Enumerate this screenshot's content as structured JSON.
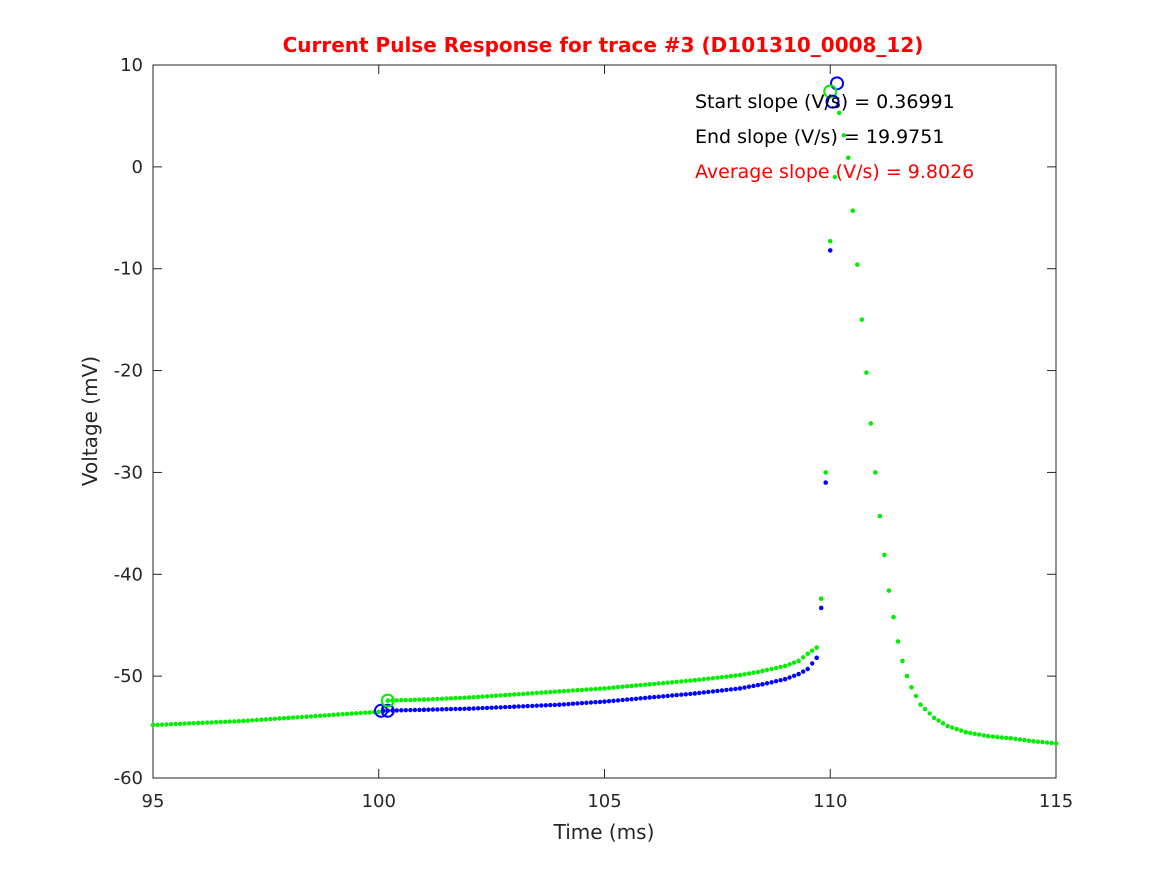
{
  "chart_data": {
    "type": "scatter",
    "title": "Current Pulse Response for trace #3 (D101310_0008_12)",
    "title_color": "#ff0000",
    "xlabel": "Time (ms)",
    "ylabel": "Voltage (mV)",
    "xlim": [
      95,
      115
    ],
    "ylim": [
      -60,
      10
    ],
    "xticks": [
      95,
      100,
      105,
      110,
      115
    ],
    "yticks": [
      -60,
      -50,
      -40,
      -30,
      -20,
      -10,
      0,
      10
    ],
    "xtick_labels": [
      "95",
      "100",
      "105",
      "110",
      "115"
    ],
    "ytick_labels": [
      "-60",
      "-50",
      "-40",
      "-30",
      "-20",
      "-10",
      "0",
      "10"
    ],
    "grid": false,
    "annotations": [
      {
        "text": "Start slope (V/s) = 0.36991",
        "color": "#000000"
      },
      {
        "text": "End slope (V/s) = 19.9751",
        "color": "#000000"
      },
      {
        "text": "Average slope (V/s) = 9.8026",
        "color": "#ff0000"
      }
    ],
    "series": [
      {
        "color": "#0000ff",
        "marker": "dot",
        "x": [
          100.1,
          101,
          102,
          103,
          104,
          105,
          106,
          107,
          108,
          108.5,
          109,
          109.3,
          109.5,
          109.7,
          109.8,
          109.9,
          110.0
        ],
        "y": [
          -53.4,
          -53.3,
          -53.2,
          -53.0,
          -52.8,
          -52.5,
          -52.1,
          -51.7,
          -51.2,
          -50.8,
          -50.3,
          -49.8,
          -49.3,
          -48.2,
          -43.3,
          -31.0,
          -8.2
        ]
      },
      {
        "color": "#00ee00",
        "marker": "dot",
        "x": [
          95,
          96,
          97,
          98,
          99,
          100,
          100.2,
          101,
          102,
          103,
          104,
          105,
          106,
          107,
          108,
          108.5,
          109,
          109.3,
          109.5,
          109.7,
          109.8,
          109.9,
          110.0,
          110.2,
          110.4,
          110.5,
          110.6,
          110.7,
          110.8,
          110.9,
          111.0,
          111.1,
          111.2,
          111.3,
          111.4,
          111.5,
          111.6,
          111.7,
          111.8,
          112.0,
          112.3,
          112.6,
          113.0,
          113.5,
          114.0,
          114.5,
          115.0
        ],
        "y": [
          -54.8,
          -54.6,
          -54.4,
          -54.1,
          -53.8,
          -53.5,
          -52.4,
          -52.3,
          -52.1,
          -51.8,
          -51.5,
          -51.2,
          -50.8,
          -50.4,
          -49.9,
          -49.5,
          -49.0,
          -48.5,
          -47.8,
          -47.2,
          -42.4,
          -30.0,
          -7.3,
          5.3,
          0.9,
          -4.3,
          -9.6,
          -15.0,
          -20.2,
          -25.2,
          -30.0,
          -34.3,
          -38.1,
          -41.6,
          -44.2,
          -46.6,
          -48.5,
          -50.0,
          -51.1,
          -52.8,
          -54.1,
          -54.9,
          -55.5,
          -55.9,
          -56.1,
          -56.4,
          -56.6
        ]
      }
    ],
    "markers": [
      {
        "x": 100.05,
        "y": -53.4,
        "color": "#0000ff",
        "shape": "circle"
      },
      {
        "x": 100.2,
        "y": -53.4,
        "color": "#0000ff",
        "shape": "circle"
      },
      {
        "x": 100.2,
        "y": -52.4,
        "color": "#00ee00",
        "shape": "circle"
      },
      {
        "x": 110.15,
        "y": 8.2,
        "color": "#0000ff",
        "shape": "circle"
      },
      {
        "x": 110.0,
        "y": 7.4,
        "color": "#00ee00",
        "shape": "circle"
      },
      {
        "x": 110.05,
        "y": 6.4,
        "color": "#0000ff",
        "shape": "circle"
      }
    ]
  }
}
